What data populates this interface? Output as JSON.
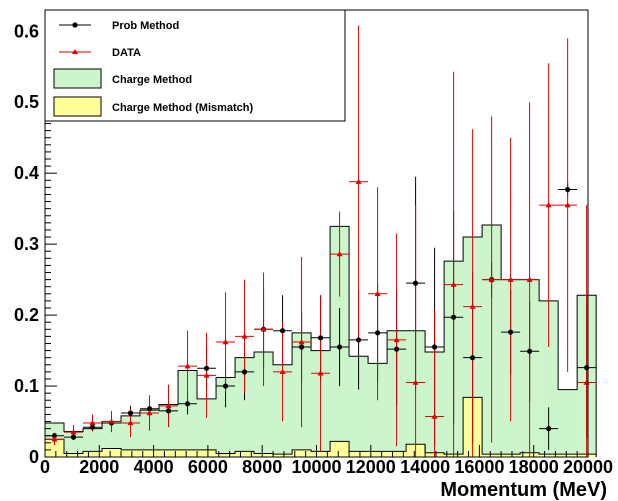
{
  "chart_data": {
    "type": "bar",
    "title": "",
    "xlabel": "Momentum (MeV)",
    "ylabel": "",
    "xlim": [
      0,
      20000
    ],
    "ylim": [
      0,
      0.63
    ],
    "x_ticks": [
      "0",
      "2000",
      "4000",
      "6000",
      "8000",
      "10000",
      "12000",
      "14000",
      "16000",
      "18000",
      "20000"
    ],
    "y_ticks": [
      "0",
      "0.1",
      "0.2",
      "0.3",
      "0.4",
      "0.5",
      "0.6"
    ],
    "bin_width": 700,
    "bin_centers": [
      350,
      1050,
      1750,
      2450,
      3150,
      3850,
      4550,
      5250,
      5950,
      6650,
      7350,
      8050,
      8750,
      9450,
      10150,
      10850,
      11550,
      12250,
      12950,
      13650,
      14350,
      15050,
      15750,
      16450,
      17150,
      17850,
      18550,
      19250,
      19950
    ],
    "series": [
      {
        "name": "Charge Method",
        "kind": "histogram",
        "color": "#ccf5cc",
        "values": [
          0.048,
          0.036,
          0.04,
          0.05,
          0.058,
          0.066,
          0.074,
          0.122,
          0.082,
          0.112,
          0.14,
          0.148,
          0.13,
          0.175,
          0.15,
          0.325,
          0.142,
          0.132,
          0.178,
          0.178,
          0.148,
          0.276,
          0.31,
          0.327,
          0.25,
          0.25,
          0.22,
          0.095,
          0.228
        ]
      },
      {
        "name": "Charge Method (Mismatch)",
        "kind": "histogram",
        "color": "#ffff99",
        "values": [
          0.025,
          0.005,
          0.008,
          0.012,
          0.01,
          0.01,
          0.01,
          0.01,
          0.01,
          0.005,
          0.008,
          0.005,
          0.004,
          0.01,
          0.008,
          0.022,
          0.008,
          0.008,
          0.008,
          0.018,
          0.006,
          0.004,
          0.084,
          0.004,
          0.004,
          0.006,
          0.004,
          0.004,
          0.004
        ]
      },
      {
        "name": "Prob Method",
        "kind": "points",
        "color": "#000000",
        "values": [
          0.03,
          0.028,
          0.042,
          0.048,
          0.062,
          0.068,
          0.065,
          0.075,
          0.125,
          0.1,
          0.12,
          0.18,
          0.178,
          0.155,
          0.168,
          0.155,
          0.165,
          0.175,
          0.152,
          0.245,
          0.155,
          0.197,
          0.14,
          0.25,
          0.176,
          0.149,
          0.04,
          0.377,
          0.126
        ],
        "errors": [
          0.004,
          0.004,
          0.006,
          0.008,
          0.01,
          0.012,
          0.012,
          0.015,
          0.03,
          0.03,
          0.04,
          0.055,
          0.05,
          0.05,
          0.06,
          0.055,
          0.07,
          0.07,
          0.08,
          0.15,
          0.14,
          0.15,
          0.12,
          0.025,
          0.06,
          0.07,
          0.03,
          0.01,
          0.1
        ]
      },
      {
        "name": "DATA",
        "kind": "points",
        "color": "#e00000",
        "values": [
          0.025,
          0.035,
          0.048,
          0.05,
          0.048,
          0.062,
          0.072,
          0.128,
          0.115,
          0.162,
          0.17,
          0.18,
          0.12,
          0.162,
          0.118,
          0.286,
          0.388,
          0.23,
          0.165,
          0.105,
          0.057,
          0.243,
          0.212,
          0.25,
          0.25,
          0.25,
          0.355,
          0.355,
          0.105
        ],
        "errors": [
          0.008,
          0.01,
          0.012,
          0.015,
          0.02,
          0.025,
          0.03,
          0.05,
          0.06,
          0.07,
          0.08,
          0.08,
          0.07,
          0.12,
          0.11,
          0.06,
          0.22,
          0.15,
          0.15,
          0.25,
          0.15,
          0.3,
          0.25,
          0.23,
          0.2,
          0.25,
          0.2,
          0.235,
          0.25
        ]
      }
    ],
    "legend": {
      "position": "top-left",
      "entries": [
        "Prob Method",
        "DATA",
        "Charge Method",
        "Charge Method (Mismatch)"
      ]
    }
  }
}
